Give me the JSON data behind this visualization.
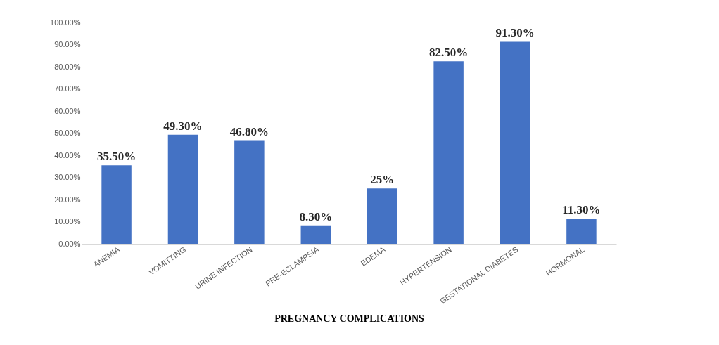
{
  "chart_data": {
    "type": "bar",
    "xlabel": "PREGNANCY COMPLICATIONS",
    "categories": [
      "ANEMIA",
      "VOMITTING",
      "URINE INFECTION",
      "PRE-ECLAMPSIA",
      "EDEMA",
      "HYPERTENSION",
      "GESTATIONAL DIABETES",
      "HORMONAL"
    ],
    "values": [
      35.5,
      49.3,
      46.8,
      8.3,
      25,
      82.5,
      91.3,
      11.3
    ],
    "value_labels": [
      "35.50%",
      "49.30%",
      "46.80%",
      "8.30%",
      "25%",
      "82.50%",
      "91.30%",
      "11.30%"
    ],
    "color": "#4472c4",
    "ylim": [
      0,
      100
    ],
    "yticks": [
      {
        "value": 0,
        "label": "0.00%"
      },
      {
        "value": 10,
        "label": "10.00%"
      },
      {
        "value": 20,
        "label": "20.00%"
      },
      {
        "value": 30,
        "label": "30.00%"
      },
      {
        "value": 40,
        "label": "40.00%"
      },
      {
        "value": 50,
        "label": "50.00%"
      },
      {
        "value": 60,
        "label": "60.00%"
      },
      {
        "value": 70,
        "label": "70.00%"
      },
      {
        "value": 80,
        "label": "80.00%"
      },
      {
        "value": 90,
        "label": "90.00%"
      },
      {
        "value": 100,
        "label": "100.00%"
      }
    ],
    "grid": false
  }
}
